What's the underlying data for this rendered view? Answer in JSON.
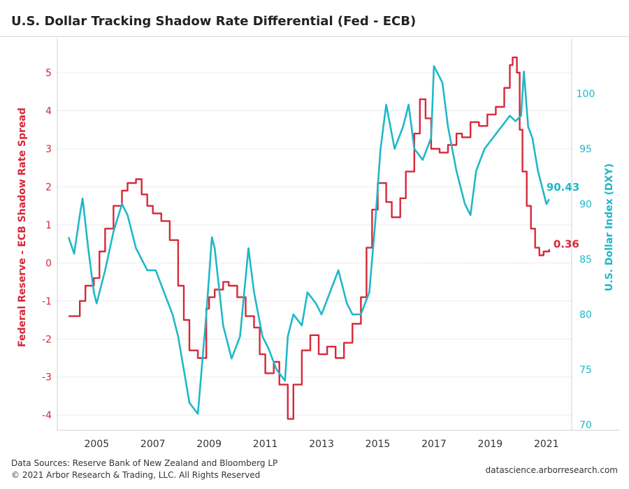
{
  "title": "U.S. Dollar Tracking Shadow Rate Differential (Fed - ECB)",
  "footer": {
    "sources": "Data Sources: Reserve Bank of New Zealand and Bloomberg LP",
    "copyright": "© 2021 Arbor Research & Trading, LLC. All Rights Reserved",
    "url": "datascience.arborresearch.com"
  },
  "colors": {
    "spread": "#d62839",
    "dxy": "#1fb8c8",
    "grid": "#ececec",
    "axis": "#cfcfcf"
  },
  "chart_data": {
    "type": "line",
    "grid": true,
    "xlim": [
      2003.6,
      2021.9
    ],
    "x_ticks": [
      2005,
      2007,
      2009,
      2011,
      2013,
      2015,
      2017,
      2019,
      2021
    ],
    "x_tick_labels": [
      "2005",
      "2007",
      "2009",
      "2011",
      "2013",
      "2015",
      "2017",
      "2019",
      "2021"
    ],
    "y_left": {
      "label": "Federal Reserve - ECB Shadow Rate Spread",
      "lim": [
        -4.4,
        5.9
      ],
      "ticks": [
        -4,
        -3,
        -2,
        -1,
        0,
        1,
        2,
        3,
        4,
        5
      ],
      "tick_labels": [
        "-4",
        "-3",
        "-2",
        "-1",
        "0",
        "1",
        "2",
        "3",
        "4",
        "5"
      ]
    },
    "y_right": {
      "label": "U.S. Dollar Index (DXY)",
      "lim": [
        69.5,
        105
      ],
      "ticks": [
        70,
        75,
        80,
        85,
        90,
        95,
        100
      ],
      "tick_labels": [
        "70",
        "75",
        "80",
        "85",
        "90",
        "95",
        "100"
      ]
    },
    "series": [
      {
        "name": "Federal Reserve - ECB Shadow Rate Spread",
        "axis": "left",
        "step": true,
        "last_label": "0.36",
        "x": [
          2004.0,
          2004.4,
          2004.6,
          2004.9,
          2005.1,
          2005.3,
          2005.6,
          2005.9,
          2006.1,
          2006.4,
          2006.6,
          2006.8,
          2007.0,
          2007.3,
          2007.6,
          2007.9,
          2008.1,
          2008.3,
          2008.6,
          2008.9,
          2009.0,
          2009.2,
          2009.5,
          2009.7,
          2010.0,
          2010.3,
          2010.6,
          2010.8,
          2011.0,
          2011.3,
          2011.5,
          2011.8,
          2012.0,
          2012.3,
          2012.6,
          2012.9,
          2013.2,
          2013.5,
          2013.8,
          2014.1,
          2014.4,
          2014.6,
          2014.8,
          2015.0,
          2015.3,
          2015.5,
          2015.8,
          2016.0,
          2016.3,
          2016.5,
          2016.7,
          2016.9,
          2017.2,
          2017.5,
          2017.8,
          2018.0,
          2018.3,
          2018.6,
          2018.9,
          2019.2,
          2019.5,
          2019.7,
          2019.8,
          2019.95,
          2020.05,
          2020.15,
          2020.3,
          2020.45,
          2020.6,
          2020.75,
          2020.9,
          2021.1
        ],
        "y": [
          -1.4,
          -1.0,
          -0.6,
          -0.4,
          0.3,
          0.9,
          1.5,
          1.9,
          2.1,
          2.2,
          1.8,
          1.5,
          1.3,
          1.1,
          0.6,
          -0.6,
          -1.5,
          -2.3,
          -2.5,
          -1.2,
          -0.9,
          -0.7,
          -0.5,
          -0.6,
          -0.9,
          -1.4,
          -1.7,
          -2.4,
          -2.9,
          -2.6,
          -3.2,
          -4.1,
          -3.2,
          -2.3,
          -1.9,
          -2.4,
          -2.2,
          -2.5,
          -2.1,
          -1.6,
          -0.9,
          0.4,
          1.4,
          2.1,
          1.6,
          1.2,
          1.7,
          2.4,
          3.4,
          4.3,
          3.8,
          3.0,
          2.9,
          3.1,
          3.4,
          3.3,
          3.7,
          3.6,
          3.9,
          4.1,
          4.6,
          5.2,
          5.4,
          5.0,
          3.5,
          2.4,
          1.5,
          0.9,
          0.4,
          0.2,
          0.3,
          0.36
        ]
      },
      {
        "name": "U.S. Dollar Index (DXY)",
        "axis": "right",
        "last_label": "90.43",
        "x": [
          2004.0,
          2004.2,
          2004.4,
          2004.5,
          2004.7,
          2004.9,
          2005.0,
          2005.3,
          2005.6,
          2005.9,
          2006.1,
          2006.4,
          2006.6,
          2006.8,
          2007.1,
          2007.4,
          2007.7,
          2007.9,
          2008.1,
          2008.3,
          2008.6,
          2008.9,
          2009.1,
          2009.2,
          2009.5,
          2009.8,
          2010.1,
          2010.4,
          2010.6,
          2010.9,
          2011.1,
          2011.4,
          2011.7,
          2011.8,
          2012.0,
          2012.3,
          2012.5,
          2012.8,
          2013.0,
          2013.3,
          2013.6,
          2013.9,
          2014.1,
          2014.4,
          2014.7,
          2014.9,
          2015.1,
          2015.3,
          2015.6,
          2015.9,
          2016.1,
          2016.3,
          2016.6,
          2016.9,
          2017.0,
          2017.3,
          2017.5,
          2017.8,
          2018.1,
          2018.3,
          2018.5,
          2018.8,
          2019.1,
          2019.4,
          2019.7,
          2019.9,
          2020.1,
          2020.2,
          2020.35,
          2020.5,
          2020.7,
          2020.9,
          2021.0,
          2021.1
        ],
        "y": [
          87.0,
          85.5,
          89.0,
          90.5,
          86.0,
          82.0,
          81.0,
          84.0,
          87.5,
          90.0,
          89.0,
          86.0,
          85.0,
          84.0,
          84.0,
          82.0,
          80.0,
          78.0,
          75.0,
          72.0,
          71.0,
          80.0,
          87.0,
          86.0,
          79.0,
          76.0,
          78.0,
          86.0,
          82.0,
          78.0,
          77.0,
          75.0,
          74.0,
          78.0,
          80.0,
          79.0,
          82.0,
          81.0,
          80.0,
          82.0,
          84.0,
          81.0,
          80.0,
          80.0,
          82.0,
          88.0,
          95.0,
          99.0,
          95.0,
          97.0,
          99.0,
          95.0,
          94.0,
          96.0,
          102.5,
          101.0,
          97.0,
          93.0,
          90.0,
          89.0,
          93.0,
          95.0,
          96.0,
          97.0,
          98.0,
          97.5,
          98.0,
          102.0,
          97.0,
          96.0,
          93.0,
          91.0,
          90.0,
          90.43
        ]
      }
    ]
  }
}
